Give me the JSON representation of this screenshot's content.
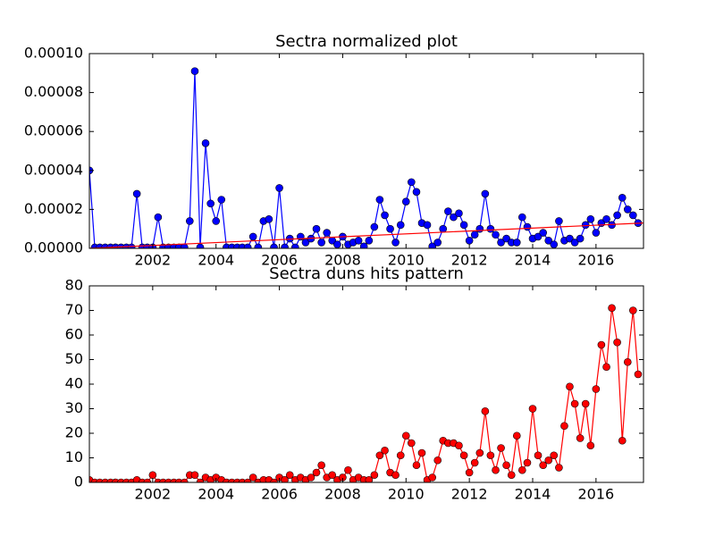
{
  "chart_data": [
    {
      "type": "line",
      "title": "Sectra normalized plot",
      "x": [
        2000,
        2000.17,
        2000.33,
        2000.5,
        2000.67,
        2000.83,
        2001,
        2001.17,
        2001.33,
        2001.5,
        2001.67,
        2001.83,
        2002,
        2002.17,
        2002.33,
        2002.5,
        2002.67,
        2002.83,
        2003,
        2003.17,
        2003.33,
        2003.5,
        2003.67,
        2003.83,
        2004,
        2004.17,
        2004.33,
        2004.5,
        2004.67,
        2004.83,
        2005,
        2005.17,
        2005.33,
        2005.5,
        2005.67,
        2005.83,
        2006,
        2006.17,
        2006.33,
        2006.5,
        2006.67,
        2006.83,
        2007,
        2007.17,
        2007.33,
        2007.5,
        2007.67,
        2007.83,
        2008,
        2008.17,
        2008.33,
        2008.5,
        2008.67,
        2008.83,
        2009,
        2009.17,
        2009.33,
        2009.5,
        2009.67,
        2009.83,
        2010,
        2010.17,
        2010.33,
        2010.5,
        2010.67,
        2010.83,
        2011,
        2011.17,
        2011.33,
        2011.5,
        2011.67,
        2011.83,
        2012,
        2012.17,
        2012.33,
        2012.5,
        2012.67,
        2012.83,
        2013,
        2013.17,
        2013.33,
        2013.5,
        2013.67,
        2013.83,
        2014,
        2014.17,
        2014.33,
        2014.5,
        2014.67,
        2014.83,
        2015,
        2015.17,
        2015.33,
        2015.5,
        2015.67,
        2015.83,
        2016,
        2016.17,
        2016.33,
        2016.5,
        2016.67,
        2016.83,
        2017,
        2017.17,
        2017.33
      ],
      "series": [
        {
          "color": "#0000ff",
          "marker": true,
          "values": [
            4e-05,
            5e-07,
            5e-07,
            5e-07,
            5e-07,
            5e-07,
            5e-07,
            5e-07,
            5e-07,
            2.8e-05,
            5e-07,
            5e-07,
            5e-07,
            1.6e-05,
            5e-07,
            5e-07,
            5e-07,
            5e-07,
            5e-07,
            1.4e-05,
            9.1e-05,
            5e-07,
            5.4e-05,
            2.3e-05,
            1.4e-05,
            2.5e-05,
            5e-07,
            5e-07,
            5e-07,
            5e-07,
            5e-07,
            6e-06,
            5e-07,
            1.4e-05,
            1.5e-05,
            5e-07,
            3.1e-05,
            5e-07,
            5e-06,
            5e-07,
            6e-06,
            3e-06,
            5e-06,
            1e-05,
            3e-06,
            8e-06,
            4e-06,
            2e-06,
            6e-06,
            2e-06,
            3e-06,
            4e-06,
            1e-06,
            4e-06,
            1.1e-05,
            2.5e-05,
            1.7e-05,
            1e-05,
            3e-06,
            1.2e-05,
            2.4e-05,
            3.4e-05,
            2.9e-05,
            1.3e-05,
            1.2e-05,
            1e-06,
            3e-06,
            1e-05,
            1.9e-05,
            1.6e-05,
            1.8e-05,
            1.2e-05,
            4e-06,
            7e-06,
            1e-05,
            2.8e-05,
            1e-05,
            7e-06,
            3e-06,
            5e-06,
            3e-06,
            3e-06,
            1.6e-05,
            1.1e-05,
            5e-06,
            6e-06,
            8e-06,
            4e-06,
            2e-06,
            1.4e-05,
            4e-06,
            5e-06,
            3e-06,
            5e-06,
            1.2e-05,
            1.5e-05,
            8e-06,
            1.3e-05,
            1.5e-05,
            1.2e-05,
            1.7e-05,
            2.6e-05,
            2e-05,
            1.7e-05,
            1.3e-05
          ]
        },
        {
          "color": "#ff0000",
          "marker": false,
          "x": [
            2000,
            2017.5
          ],
          "values": [
            0,
            1.3e-05
          ]
        }
      ],
      "xlim": [
        2000,
        2017.5
      ],
      "xticks": [
        2002,
        2004,
        2006,
        2008,
        2010,
        2012,
        2014,
        2016
      ],
      "ylim": [
        0,
        0.0001
      ],
      "yticks": [
        {
          "value": 0,
          "label": "0.00000"
        },
        {
          "value": 2e-05,
          "label": "0.00002"
        },
        {
          "value": 4e-05,
          "label": "0.00004"
        },
        {
          "value": 6e-05,
          "label": "0.00006"
        },
        {
          "value": 8e-05,
          "label": "0.00008"
        },
        {
          "value": 0.0001,
          "label": "0.00010"
        }
      ]
    },
    {
      "type": "line",
      "title": "Sectra duns hits pattern",
      "x": [
        2000,
        2000.17,
        2000.33,
        2000.5,
        2000.67,
        2000.83,
        2001,
        2001.17,
        2001.33,
        2001.5,
        2001.67,
        2001.83,
        2002,
        2002.17,
        2002.33,
        2002.5,
        2002.67,
        2002.83,
        2003,
        2003.17,
        2003.33,
        2003.5,
        2003.67,
        2003.83,
        2004,
        2004.17,
        2004.33,
        2004.5,
        2004.67,
        2004.83,
        2005,
        2005.17,
        2005.33,
        2005.5,
        2005.67,
        2005.83,
        2006,
        2006.17,
        2006.33,
        2006.5,
        2006.67,
        2006.83,
        2007,
        2007.17,
        2007.33,
        2007.5,
        2007.67,
        2007.83,
        2008,
        2008.17,
        2008.33,
        2008.5,
        2008.67,
        2008.83,
        2009,
        2009.17,
        2009.33,
        2009.5,
        2009.67,
        2009.83,
        2010,
        2010.17,
        2010.33,
        2010.5,
        2010.67,
        2010.83,
        2011,
        2011.17,
        2011.33,
        2011.5,
        2011.67,
        2011.83,
        2012,
        2012.17,
        2012.33,
        2012.5,
        2012.67,
        2012.83,
        2013,
        2013.17,
        2013.33,
        2013.5,
        2013.67,
        2013.83,
        2014,
        2014.17,
        2014.33,
        2014.5,
        2014.67,
        2014.83,
        2015,
        2015.17,
        2015.33,
        2015.5,
        2015.67,
        2015.83,
        2016,
        2016.17,
        2016.33,
        2016.5,
        2016.67,
        2016.83,
        2017,
        2017.17,
        2017.33
      ],
      "series": [
        {
          "color": "#ff0000",
          "marker": true,
          "values": [
            1,
            0,
            0,
            0,
            0,
            0,
            0,
            0,
            0,
            1,
            0,
            0,
            3,
            0,
            0,
            0,
            0,
            0,
            0,
            3,
            3,
            0,
            2,
            1,
            2,
            1,
            0,
            0,
            0,
            0,
            0,
            2,
            0,
            1,
            1,
            0,
            2,
            1,
            3,
            1,
            2,
            1,
            2,
            4,
            7,
            2,
            3,
            1,
            2,
            5,
            1,
            2,
            1,
            1,
            3,
            11,
            13,
            4,
            3,
            11,
            19,
            16,
            7,
            12,
            1,
            2,
            9,
            17,
            16,
            16,
            15,
            11,
            4,
            8,
            12,
            29,
            11,
            5,
            14,
            7,
            3,
            19,
            5,
            8,
            30,
            11,
            7,
            9,
            11,
            6,
            23,
            39,
            32,
            18,
            32,
            15,
            38,
            56,
            47,
            71,
            57,
            17,
            49,
            70,
            44
          ]
        }
      ],
      "xlim": [
        2000,
        2017.5
      ],
      "xticks": [
        2002,
        2004,
        2006,
        2008,
        2010,
        2012,
        2014,
        2016
      ],
      "ylim": [
        0,
        80
      ],
      "yticks": [
        0,
        10,
        20,
        30,
        40,
        50,
        60,
        70,
        80
      ]
    }
  ]
}
